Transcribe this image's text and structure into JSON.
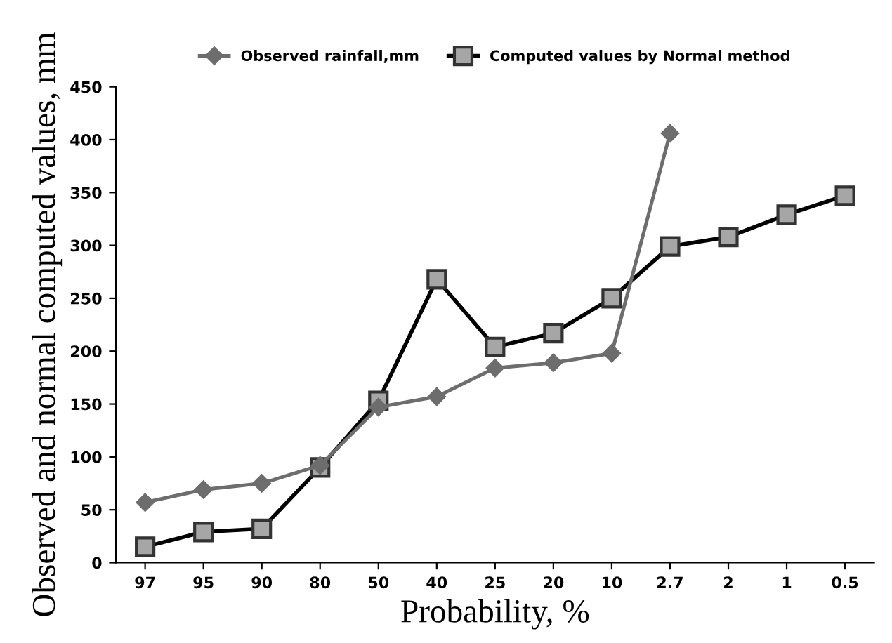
{
  "chart_data": {
    "type": "line",
    "xlabel": "Probability, %",
    "ylabel": "Observed and normal computed values, mm",
    "categories": [
      "97",
      "95",
      "90",
      "80",
      "50",
      "40",
      "25",
      "20",
      "10",
      "2.7",
      "2",
      "1",
      "0.5"
    ],
    "series": [
      {
        "name": "Observed rainfall,mm",
        "color": "#6d6d6d",
        "marker": "diamond",
        "values": [
          57,
          69,
          75,
          92,
          147,
          157,
          184,
          189,
          198,
          406,
          null,
          null,
          null
        ]
      },
      {
        "name": "Computed values by Normal method",
        "color": "#000000",
        "marker": "square",
        "values": [
          15,
          29,
          32,
          90,
          153,
          268,
          204,
          217,
          250,
          299,
          308,
          329,
          347
        ]
      }
    ],
    "ylim": [
      0,
      450
    ],
    "yticks": [
      0,
      50,
      100,
      150,
      200,
      250,
      300,
      350,
      400,
      450
    ],
    "grid": false,
    "legend": "top",
    "line_style": "solid"
  }
}
